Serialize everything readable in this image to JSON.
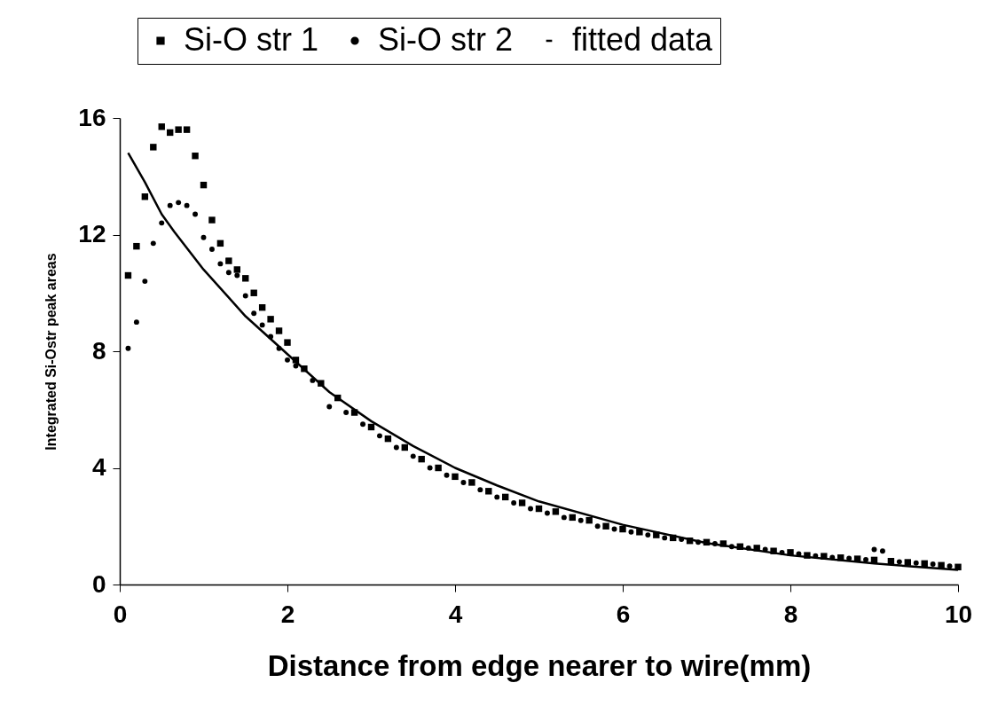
{
  "chart_data": {
    "type": "scatter",
    "xlabel": "Distance from edge nearer to wire(mm)",
    "ylabel": "Integrated Si-Ostr peak areas",
    "xlim": [
      0,
      10
    ],
    "xticks": [
      0,
      2,
      4,
      6,
      8,
      10
    ],
    "ylim": [
      0,
      16
    ],
    "yticks": [
      0,
      4,
      8,
      12,
      16
    ],
    "grid": false,
    "legend": "top",
    "series": [
      {
        "name": "Si-O str 1",
        "color": "#000000",
        "marker": "square",
        "x": [
          0.1,
          0.2,
          0.3,
          0.4,
          0.5,
          0.6,
          0.7,
          0.8,
          0.9,
          1.0,
          1.1,
          1.2,
          1.3,
          1.4,
          1.5,
          1.6,
          1.7,
          1.8,
          1.9,
          2.0,
          2.1,
          2.2,
          2.4,
          2.6,
          2.8,
          3.0,
          3.2,
          3.4,
          3.6,
          3.8,
          4.0,
          4.2,
          4.4,
          4.6,
          4.8,
          5.0,
          5.2,
          5.4,
          5.6,
          5.8,
          6.0,
          6.2,
          6.4,
          6.6,
          6.8,
          7.0,
          7.2,
          7.4,
          7.6,
          7.8,
          8.0,
          8.2,
          8.4,
          8.6,
          8.8,
          9.0,
          9.2,
          9.4,
          9.6,
          9.8,
          10.0
        ],
        "values": [
          10.6,
          11.6,
          13.3,
          15.0,
          15.7,
          15.5,
          15.6,
          15.6,
          14.7,
          13.7,
          12.5,
          11.7,
          11.1,
          10.8,
          10.5,
          10.0,
          9.5,
          9.1,
          8.7,
          8.3,
          7.7,
          7.4,
          6.9,
          6.4,
          5.9,
          5.4,
          5.0,
          4.7,
          4.3,
          4.0,
          3.7,
          3.5,
          3.2,
          3.0,
          2.8,
          2.6,
          2.5,
          2.3,
          2.2,
          2.0,
          1.9,
          1.8,
          1.7,
          1.6,
          1.5,
          1.45,
          1.4,
          1.3,
          1.25,
          1.15,
          1.1,
          1.0,
          0.97,
          0.92,
          0.88,
          0.84,
          0.8,
          0.76,
          0.72,
          0.66,
          0.6
        ]
      },
      {
        "name": "Si-O str 2",
        "color": "#000000",
        "marker": "circle",
        "x": [
          0.1,
          0.2,
          0.3,
          0.4,
          0.5,
          0.6,
          0.7,
          0.8,
          0.9,
          1.0,
          1.1,
          1.2,
          1.3,
          1.4,
          1.5,
          1.6,
          1.7,
          1.8,
          1.9,
          2.0,
          2.1,
          2.3,
          2.5,
          2.7,
          2.9,
          3.1,
          3.3,
          3.5,
          3.7,
          3.9,
          4.1,
          4.3,
          4.5,
          4.7,
          4.9,
          5.1,
          5.3,
          5.5,
          5.7,
          5.9,
          6.1,
          6.3,
          6.5,
          6.7,
          6.9,
          7.1,
          7.3,
          7.5,
          7.7,
          7.9,
          8.1,
          8.3,
          8.5,
          8.7,
          8.9,
          9.0,
          9.1,
          9.3,
          9.5,
          9.7,
          9.9
        ],
        "values": [
          8.1,
          9.0,
          10.4,
          11.7,
          12.4,
          13.0,
          13.1,
          13.0,
          12.7,
          11.9,
          11.5,
          11.0,
          10.7,
          10.6,
          9.9,
          9.3,
          8.9,
          8.5,
          8.1,
          7.7,
          7.5,
          7.0,
          6.1,
          5.9,
          5.5,
          5.1,
          4.7,
          4.4,
          4.0,
          3.75,
          3.5,
          3.25,
          3.0,
          2.8,
          2.6,
          2.45,
          2.3,
          2.2,
          2.0,
          1.9,
          1.8,
          1.7,
          1.6,
          1.55,
          1.45,
          1.4,
          1.3,
          1.25,
          1.2,
          1.1,
          1.05,
          0.98,
          0.93,
          0.9,
          0.85,
          1.2,
          1.15,
          0.78,
          0.74,
          0.7,
          0.63
        ]
      },
      {
        "name": "fitted data",
        "type": "line",
        "color": "#000000",
        "marker": "none",
        "line_style": "solid",
        "x": [
          0.1,
          0.3,
          0.5,
          0.65,
          1.0,
          1.5,
          2.0,
          2.5,
          3.0,
          3.5,
          4.0,
          4.5,
          5.0,
          6.0,
          7.0,
          8.0,
          9.0,
          10.0
        ],
        "values": [
          14.8,
          13.8,
          12.7,
          12.1,
          10.8,
          9.2,
          7.9,
          6.6,
          5.6,
          4.75,
          4.0,
          3.4,
          2.85,
          2.05,
          1.42,
          1.0,
          0.72,
          0.5
        ]
      }
    ]
  }
}
